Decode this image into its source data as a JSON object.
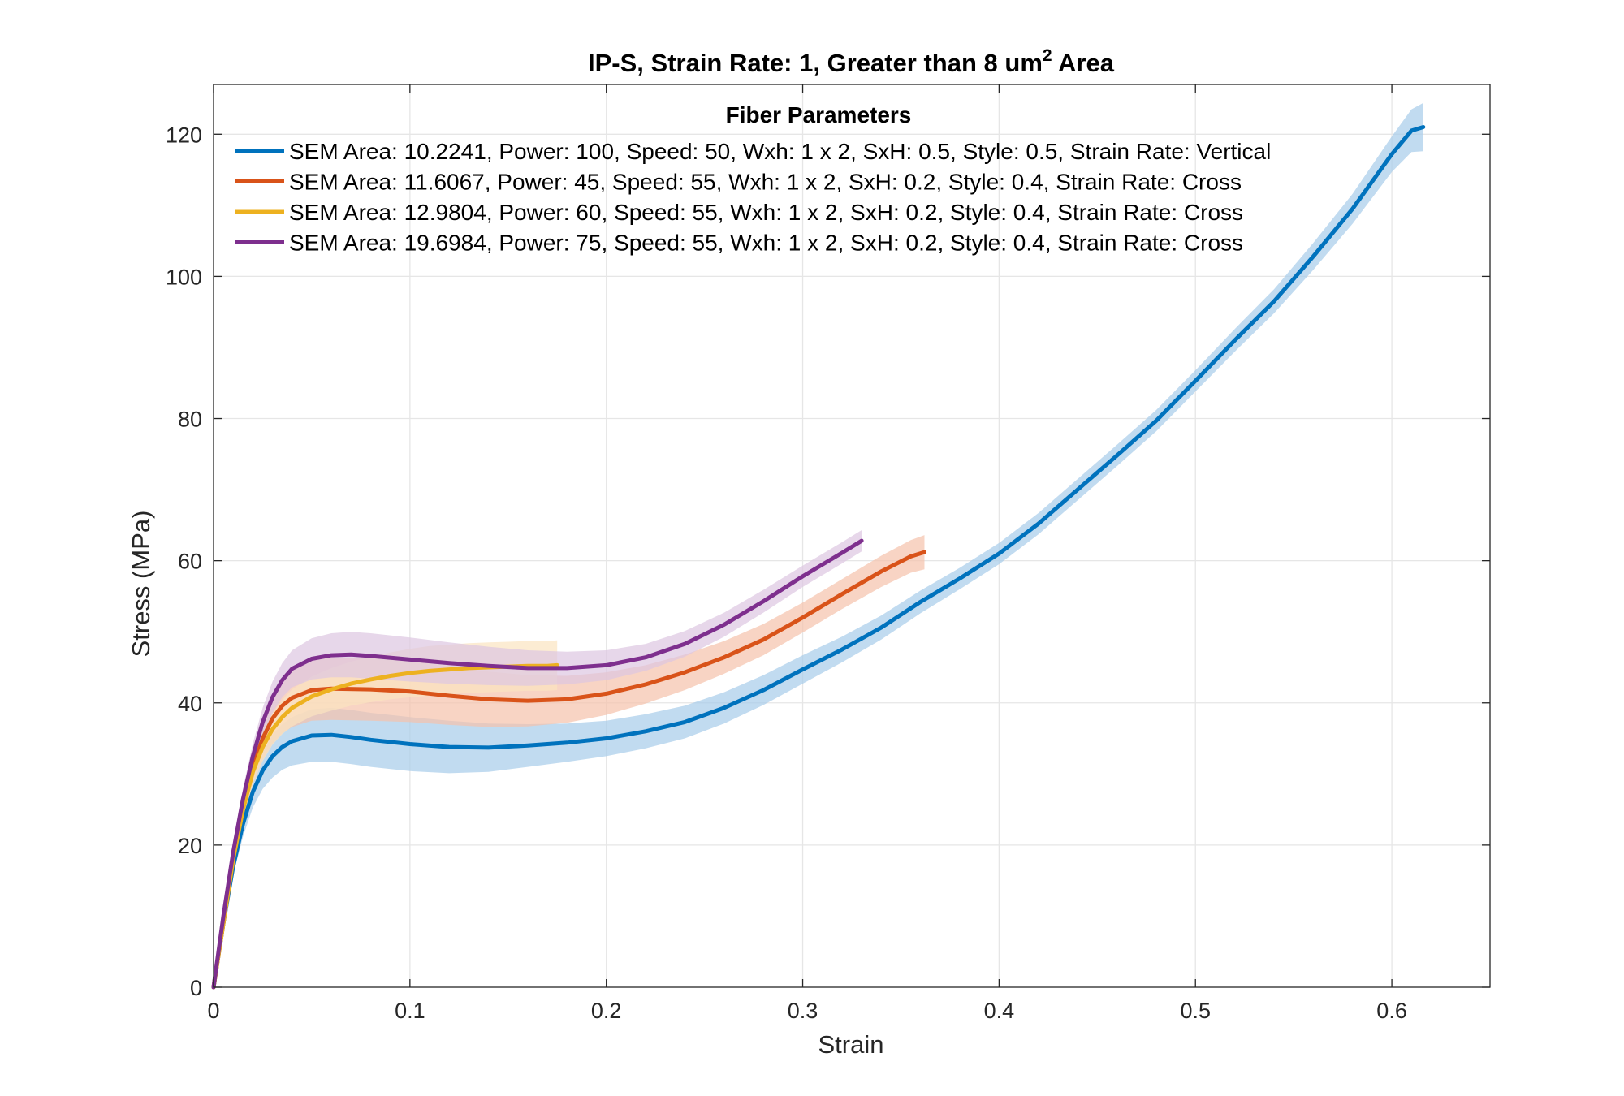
{
  "chart_data": {
    "type": "line",
    "title": "IP-S, Strain Rate: 1, Greater than 8 um² Area",
    "title_parts": {
      "before": "IP-S, Strain Rate: 1, Greater than 8 um",
      "sup": "2",
      "after": " Area"
    },
    "xlabel": "Strain",
    "ylabel": "Stress (MPa)",
    "xlim": [
      0,
      0.65
    ],
    "ylim": [
      0,
      127
    ],
    "xticks": [
      0,
      0.1,
      0.2,
      0.3,
      0.4,
      0.5,
      0.6
    ],
    "xtick_labels": [
      "0",
      "0.1",
      "0.2",
      "0.3",
      "0.4",
      "0.5",
      "0.6"
    ],
    "yticks": [
      0,
      20,
      40,
      60,
      80,
      100,
      120
    ],
    "ytick_labels": [
      "0",
      "20",
      "40",
      "60",
      "80",
      "100",
      "120"
    ],
    "grid": true,
    "legend": {
      "title": "Fiber Parameters",
      "placement": "top"
    },
    "series": [
      {
        "name": "SEM Area: 10.2241, Power: 100, Speed: 50, Wxh: 1 x 2, SxH: 0.5, Style: 0.5, Strain Rate: Vertical",
        "color": "#0072BD",
        "band_color": "#A6CCEA",
        "x": [
          0,
          0.005,
          0.01,
          0.015,
          0.02,
          0.025,
          0.03,
          0.035,
          0.04,
          0.05,
          0.06,
          0.07,
          0.08,
          0.1,
          0.12,
          0.14,
          0.16,
          0.18,
          0.2,
          0.22,
          0.24,
          0.26,
          0.28,
          0.3,
          0.32,
          0.34,
          0.36,
          0.38,
          0.4,
          0.42,
          0.44,
          0.46,
          0.48,
          0.5,
          0.52,
          0.54,
          0.56,
          0.58,
          0.6,
          0.61,
          0.616
        ],
        "y": [
          0,
          9,
          17,
          23,
          27.5,
          30.5,
          32.5,
          33.8,
          34.6,
          35.4,
          35.5,
          35.2,
          34.8,
          34.2,
          33.8,
          33.7,
          34.0,
          34.4,
          35.0,
          36.0,
          37.3,
          39.3,
          41.8,
          44.7,
          47.5,
          50.6,
          54.2,
          57.5,
          61.0,
          65.2,
          70.0,
          74.8,
          79.7,
          85.3,
          91.0,
          96.5,
          102.8,
          109.5,
          117.2,
          120.5,
          121.0
        ],
        "band": [
          0,
          0.6,
          1.2,
          1.8,
          2.2,
          2.6,
          3.0,
          3.2,
          3.4,
          3.7,
          3.8,
          3.8,
          3.8,
          3.8,
          3.7,
          3.4,
          3.0,
          2.7,
          2.5,
          2.4,
          2.3,
          2.2,
          2.1,
          2.0,
          1.8,
          1.7,
          1.6,
          1.5,
          1.5,
          1.5,
          1.5,
          1.5,
          1.5,
          1.5,
          1.6,
          1.7,
          1.9,
          2.1,
          2.5,
          3.0,
          3.4
        ]
      },
      {
        "name": "SEM Area: 11.6067, Power: 45, Speed: 55, Wxh: 1 x 2, SxH: 0.2, Style: 0.4, Strain Rate: Cross",
        "color": "#D95319",
        "band_color": "#F5C2AB",
        "x": [
          0,
          0.005,
          0.01,
          0.015,
          0.02,
          0.025,
          0.03,
          0.035,
          0.04,
          0.05,
          0.06,
          0.08,
          0.1,
          0.12,
          0.14,
          0.16,
          0.18,
          0.2,
          0.22,
          0.24,
          0.26,
          0.28,
          0.3,
          0.32,
          0.34,
          0.355,
          0.362
        ],
        "y": [
          0,
          9,
          18,
          25.5,
          31,
          35,
          37.8,
          39.6,
          40.7,
          41.8,
          42.0,
          41.9,
          41.6,
          41.0,
          40.5,
          40.3,
          40.5,
          41.3,
          42.6,
          44.3,
          46.4,
          48.9,
          52.0,
          55.3,
          58.5,
          60.6,
          61.2
        ],
        "band": [
          0,
          0.6,
          1.2,
          1.8,
          2.4,
          3.0,
          3.5,
          3.9,
          4.1,
          4.3,
          4.4,
          4.4,
          4.3,
          4.1,
          3.9,
          3.6,
          3.3,
          3.0,
          2.7,
          2.5,
          2.3,
          2.2,
          2.1,
          2.1,
          2.2,
          2.3,
          2.4
        ]
      },
      {
        "name": "SEM Area: 12.9804, Power: 60, Speed: 55, Wxh: 1 x 2, SxH: 0.2, Style: 0.4, Strain Rate: Cross",
        "color": "#EDB120",
        "band_color": "#FBE4C0",
        "x": [
          0,
          0.005,
          0.01,
          0.015,
          0.02,
          0.025,
          0.03,
          0.035,
          0.04,
          0.05,
          0.06,
          0.07,
          0.08,
          0.09,
          0.1,
          0.11,
          0.12,
          0.13,
          0.14,
          0.15,
          0.16,
          0.17,
          0.175
        ],
        "y": [
          0,
          9,
          18,
          25,
          30.3,
          33.8,
          36.3,
          38.0,
          39.3,
          40.9,
          41.9,
          42.7,
          43.3,
          43.8,
          44.2,
          44.5,
          44.7,
          44.9,
          45.0,
          45.1,
          45.2,
          45.2,
          45.3
        ],
        "band": [
          0,
          0.5,
          1.0,
          1.4,
          1.7,
          2.0,
          2.2,
          2.4,
          2.6,
          2.8,
          3.0,
          3.1,
          3.2,
          3.3,
          3.4,
          3.5,
          3.5,
          3.5,
          3.5,
          3.5,
          3.5,
          3.5,
          3.5
        ]
      },
      {
        "name": "SEM Area: 19.6984, Power: 75, Speed: 55, Wxh: 1 x 2, SxH: 0.2, Style: 0.4, Strain Rate: Cross",
        "color": "#7E2F8E",
        "band_color": "#DDC6E1",
        "x": [
          0,
          0.005,
          0.01,
          0.015,
          0.02,
          0.025,
          0.03,
          0.035,
          0.04,
          0.05,
          0.06,
          0.07,
          0.08,
          0.1,
          0.12,
          0.14,
          0.16,
          0.18,
          0.2,
          0.22,
          0.24,
          0.26,
          0.28,
          0.3,
          0.32,
          0.33
        ],
        "y": [
          0,
          10,
          19,
          26.5,
          32.5,
          37.3,
          40.8,
          43.2,
          44.8,
          46.2,
          46.7,
          46.8,
          46.6,
          46.1,
          45.6,
          45.2,
          44.9,
          44.9,
          45.3,
          46.4,
          48.3,
          51.0,
          54.3,
          57.8,
          61.1,
          62.8
        ],
        "band": [
          0,
          0.5,
          1.0,
          1.5,
          1.8,
          2.0,
          2.2,
          2.4,
          2.6,
          2.9,
          3.1,
          3.2,
          3.2,
          3.1,
          2.9,
          2.7,
          2.5,
          2.3,
          2.1,
          1.9,
          1.8,
          1.7,
          1.6,
          1.5,
          1.5,
          1.5
        ]
      }
    ]
  }
}
